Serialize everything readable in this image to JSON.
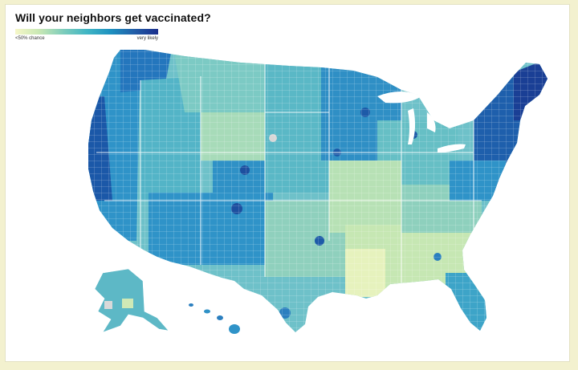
{
  "title": "Will your neighbors get vaccinated?",
  "legend": {
    "low_label": "<50% chance",
    "high_label": "very likely",
    "colors": [
      "#f6f7c8",
      "#c9e8b4",
      "#7fcdbb",
      "#41b6c4",
      "#1d91c0",
      "#225ea8",
      "#1b2f8c"
    ]
  },
  "colors": {
    "page_background": "#f3f1cf",
    "card_background": "#ffffff",
    "county_lines": "#ffffff"
  }
}
